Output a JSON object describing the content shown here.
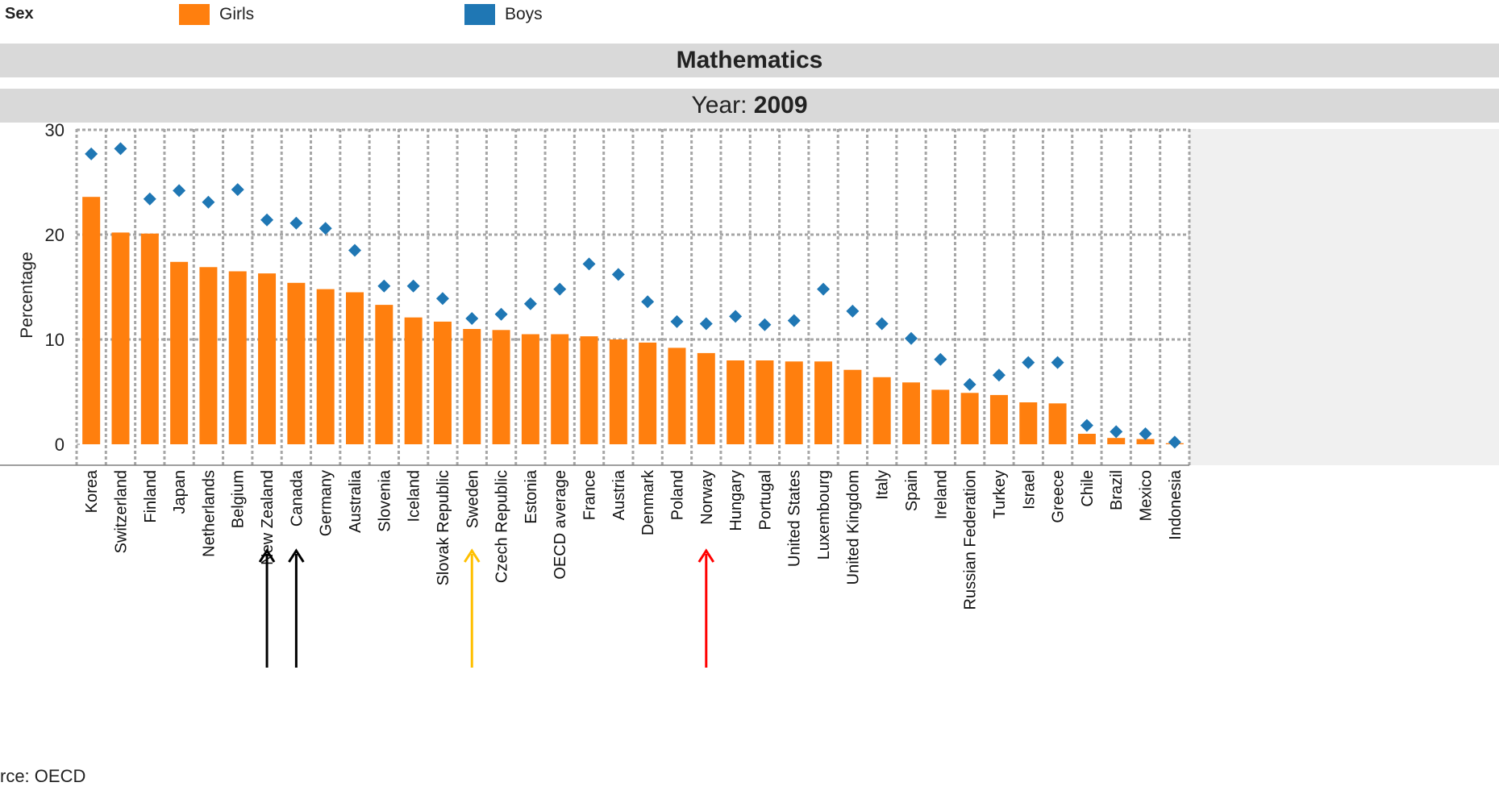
{
  "legend": {
    "title": "Sex",
    "items": [
      {
        "label": "Girls",
        "color": "#ff7f0e"
      },
      {
        "label": "Boys",
        "color": "#1f77b4"
      }
    ]
  },
  "panel": {
    "subject": "Mathematics",
    "year_label": "Year:",
    "year_value": "2009"
  },
  "source_text": "rce: OECD",
  "chart_data": {
    "type": "bar",
    "ylabel": "Percentage",
    "ylim": [
      0,
      30
    ],
    "yticks": [
      0,
      10,
      20,
      30
    ],
    "grid": true,
    "categories": [
      "Korea",
      "Switzerland",
      "Finland",
      "Japan",
      "Netherlands",
      "Belgium",
      "New Zealand",
      "Canada",
      "Germany",
      "Australia",
      "Slovenia",
      "Iceland",
      "Slovak Republic",
      "Sweden",
      "Czech Republic",
      "Estonia",
      "OECD average",
      "France",
      "Austria",
      "Denmark",
      "Poland",
      "Norway",
      "Hungary",
      "Portugal",
      "United States",
      "Luxembourg",
      "United Kingdom",
      "Italy",
      "Spain",
      "Ireland",
      "Russian Federation",
      "Turkey",
      "Israel",
      "Greece",
      "Chile",
      "Brazil",
      "Mexico",
      "Indonesia"
    ],
    "series": [
      {
        "name": "Girls",
        "mark": "bar",
        "color": "#ff7f0e",
        "values": [
          23.6,
          20.2,
          20.1,
          17.4,
          16.9,
          16.5,
          16.3,
          15.4,
          14.8,
          14.5,
          13.3,
          12.1,
          11.7,
          11.0,
          10.9,
          10.5,
          10.5,
          10.3,
          10.0,
          9.7,
          9.2,
          8.7,
          8.0,
          8.0,
          7.9,
          7.9,
          7.1,
          6.4,
          5.9,
          5.2,
          4.9,
          4.7,
          4.0,
          3.9,
          1.0,
          0.6,
          0.5,
          0.1
        ]
      },
      {
        "name": "Boys",
        "mark": "diamond",
        "color": "#1f77b4",
        "values": [
          27.7,
          28.2,
          23.4,
          24.2,
          23.1,
          24.3,
          21.4,
          21.1,
          20.6,
          18.5,
          15.1,
          15.1,
          13.9,
          12.0,
          12.4,
          13.4,
          14.8,
          17.2,
          16.2,
          13.6,
          11.7,
          11.5,
          12.2,
          11.4,
          11.8,
          14.8,
          12.7,
          11.5,
          10.1,
          8.1,
          5.7,
          6.6,
          7.8,
          7.8,
          1.8,
          1.2,
          1.0,
          0.2
        ]
      }
    ]
  },
  "annotations": [
    {
      "type": "arrow",
      "color": "#000000",
      "category": "New Zealand"
    },
    {
      "type": "arrow",
      "color": "#000000",
      "category": "Canada"
    },
    {
      "type": "arrow",
      "color": "#ffc000",
      "category": "Sweden"
    },
    {
      "type": "arrow",
      "color": "#ff0000",
      "category": "Norway"
    }
  ]
}
